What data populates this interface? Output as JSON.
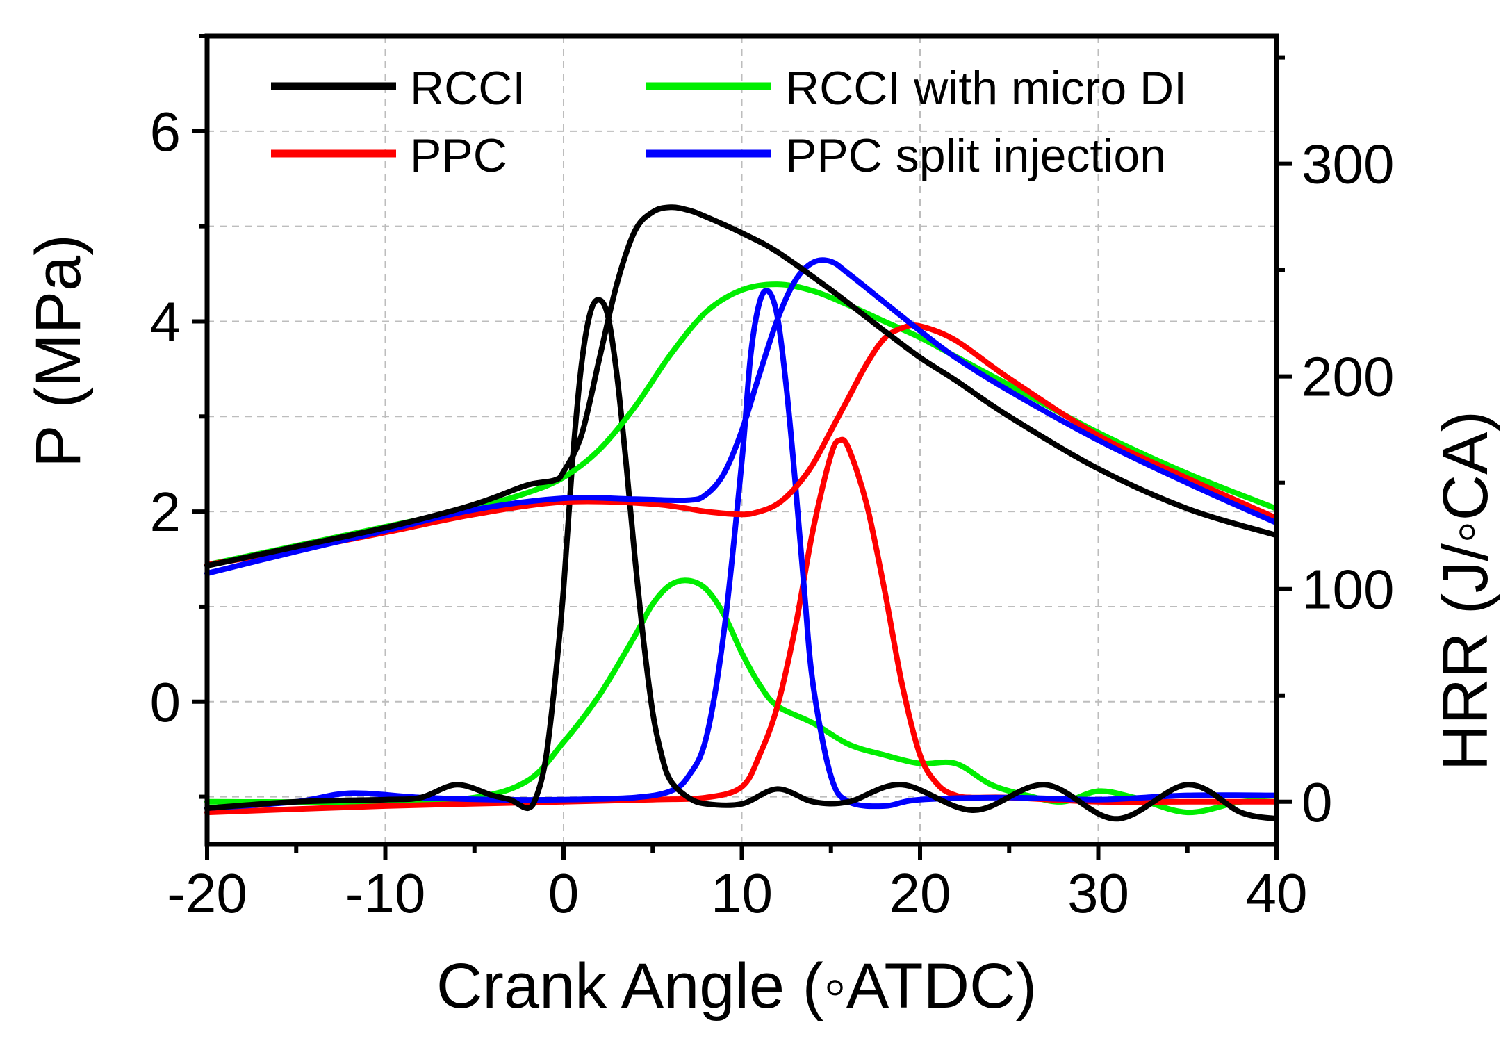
{
  "chart_data": {
    "type": "line",
    "xlabel": "Crank Angle (◦ATDC)",
    "ylabel_left": "P (MPa)",
    "ylabel_right": "HRR (J/◦CA)",
    "xlim": [
      -20,
      40
    ],
    "ylim_left": [
      -1.5,
      7.0
    ],
    "ylim_right": [
      -20,
      360
    ],
    "x_ticks": [
      -20,
      -10,
      0,
      10,
      20,
      30,
      40
    ],
    "x_tick_labels": [
      "-20",
      "-10",
      "0",
      "10",
      "20",
      "30",
      "40"
    ],
    "y_left_ticks": [
      0,
      2,
      4,
      6
    ],
    "y_left_tick_labels": [
      "0",
      "2",
      "4",
      "6"
    ],
    "y_right_ticks": [
      0,
      100,
      200,
      300
    ],
    "y_right_tick_labels": [
      "0",
      "100",
      "200",
      "300"
    ],
    "grid": true,
    "legend_position": "top",
    "series": [
      {
        "name": "RCCI",
        "color": "#000000",
        "pressure": {
          "x": [
            -20,
            -15,
            -10,
            -6,
            -4,
            -2,
            -0.5,
            0,
            1,
            2,
            3,
            4,
            5,
            6,
            7,
            8,
            10,
            12,
            15,
            18,
            20,
            22,
            25,
            30,
            35,
            40
          ],
          "y": [
            1.43,
            1.63,
            1.83,
            2.02,
            2.14,
            2.28,
            2.33,
            2.42,
            2.8,
            3.6,
            4.4,
            4.95,
            5.15,
            5.2,
            5.17,
            5.1,
            4.93,
            4.73,
            4.33,
            3.9,
            3.62,
            3.38,
            3.0,
            2.45,
            2.03,
            1.75
          ]
        },
        "hrr": {
          "x": [
            -20,
            -15,
            -10,
            -8,
            -6,
            -4,
            -3,
            -2,
            -1.5,
            -1,
            -0.5,
            0,
            0.5,
            1,
            1.5,
            2,
            2.5,
            3,
            3.5,
            4,
            4.5,
            5,
            5.5,
            6,
            7,
            8,
            10,
            12,
            14,
            16,
            19,
            23,
            27,
            31,
            35,
            38,
            40
          ],
          "y": [
            -3,
            0,
            1,
            2,
            8,
            3,
            1,
            -3,
            3,
            20,
            55,
            100,
            160,
            205,
            230,
            236,
            228,
            200,
            160,
            115,
            75,
            42,
            22,
            10,
            2,
            -1,
            -1,
            6,
            0,
            0,
            8,
            -4,
            8,
            -8,
            8,
            -5,
            -8
          ]
        }
      },
      {
        "name": "PPC",
        "color": "#ff0000",
        "pressure": {
          "x": [
            -20,
            -15,
            -10,
            -5,
            0,
            5,
            8,
            10,
            11,
            12,
            13,
            14,
            15,
            16,
            17,
            18,
            19,
            20,
            22,
            25,
            30,
            35,
            40
          ],
          "y": [
            1.44,
            1.6,
            1.78,
            1.97,
            2.1,
            2.08,
            2.0,
            1.97,
            2.0,
            2.08,
            2.25,
            2.5,
            2.85,
            3.2,
            3.55,
            3.82,
            3.93,
            3.95,
            3.8,
            3.4,
            2.8,
            2.35,
            1.93
          ]
        },
        "hrr": {
          "x": [
            -20,
            -10,
            0,
            5,
            8,
            10,
            11,
            12,
            13,
            14,
            15,
            15.5,
            16,
            17,
            18,
            19,
            20,
            21,
            22,
            23,
            25,
            30,
            35,
            40
          ],
          "y": [
            -5,
            -2,
            0,
            1,
            2,
            7,
            22,
            45,
            82,
            128,
            163,
            170,
            166,
            140,
            100,
            55,
            22,
            8,
            3,
            2,
            2,
            0,
            0,
            0
          ]
        }
      },
      {
        "name": "RCCI with micro DI",
        "color": "#00ee00",
        "pressure": {
          "x": [
            -20,
            -15,
            -10,
            -5,
            -2,
            0,
            2,
            4,
            6,
            8,
            10,
            12,
            14,
            16,
            18,
            20,
            22,
            25,
            30,
            35,
            40
          ],
          "y": [
            1.44,
            1.64,
            1.84,
            2.04,
            2.2,
            2.36,
            2.65,
            3.1,
            3.65,
            4.1,
            4.33,
            4.39,
            4.32,
            4.17,
            4.0,
            3.83,
            3.63,
            3.33,
            2.83,
            2.4,
            2.03
          ]
        },
        "hrr": {
          "x": [
            -20,
            -10,
            -5,
            -2,
            0,
            2,
            4,
            5,
            6,
            7,
            8,
            9,
            10,
            11,
            12,
            14,
            16,
            18,
            20,
            22,
            24,
            26,
            28,
            30,
            32,
            35,
            38,
            40
          ],
          "y": [
            0,
            0,
            2,
            10,
            28,
            50,
            78,
            93,
            102,
            104,
            100,
            88,
            70,
            55,
            45,
            37,
            27,
            22,
            18,
            18,
            8,
            3,
            0,
            5,
            2,
            -5,
            0,
            0
          ]
        }
      },
      {
        "name": "PPC split injection",
        "color": "#0000ff",
        "pressure": {
          "x": [
            -20,
            -15,
            -10,
            -5,
            0,
            4,
            7,
            8,
            9,
            10,
            11,
            12,
            13,
            14,
            15,
            16,
            18,
            20,
            22,
            25,
            30,
            35,
            40
          ],
          "y": [
            1.35,
            1.58,
            1.8,
            2.02,
            2.14,
            2.13,
            2.12,
            2.18,
            2.4,
            2.85,
            3.45,
            4.02,
            4.43,
            4.62,
            4.63,
            4.5,
            4.2,
            3.9,
            3.62,
            3.27,
            2.75,
            2.3,
            1.88
          ]
        },
        "hrr": {
          "x": [
            -20,
            -15,
            -12,
            -8,
            -4,
            0,
            4,
            6,
            7,
            8,
            9,
            10,
            10.5,
            11,
            11.5,
            12,
            12.5,
            13,
            13.5,
            14,
            15,
            16,
            18,
            20,
            25,
            30,
            35,
            40
          ],
          "y": [
            -3,
            0,
            4,
            2,
            1,
            1,
            2,
            5,
            12,
            30,
            80,
            160,
            210,
            235,
            240,
            228,
            195,
            150,
            100,
            55,
            12,
            0,
            -2,
            1,
            2,
            1,
            3,
            3
          ]
        }
      }
    ]
  }
}
